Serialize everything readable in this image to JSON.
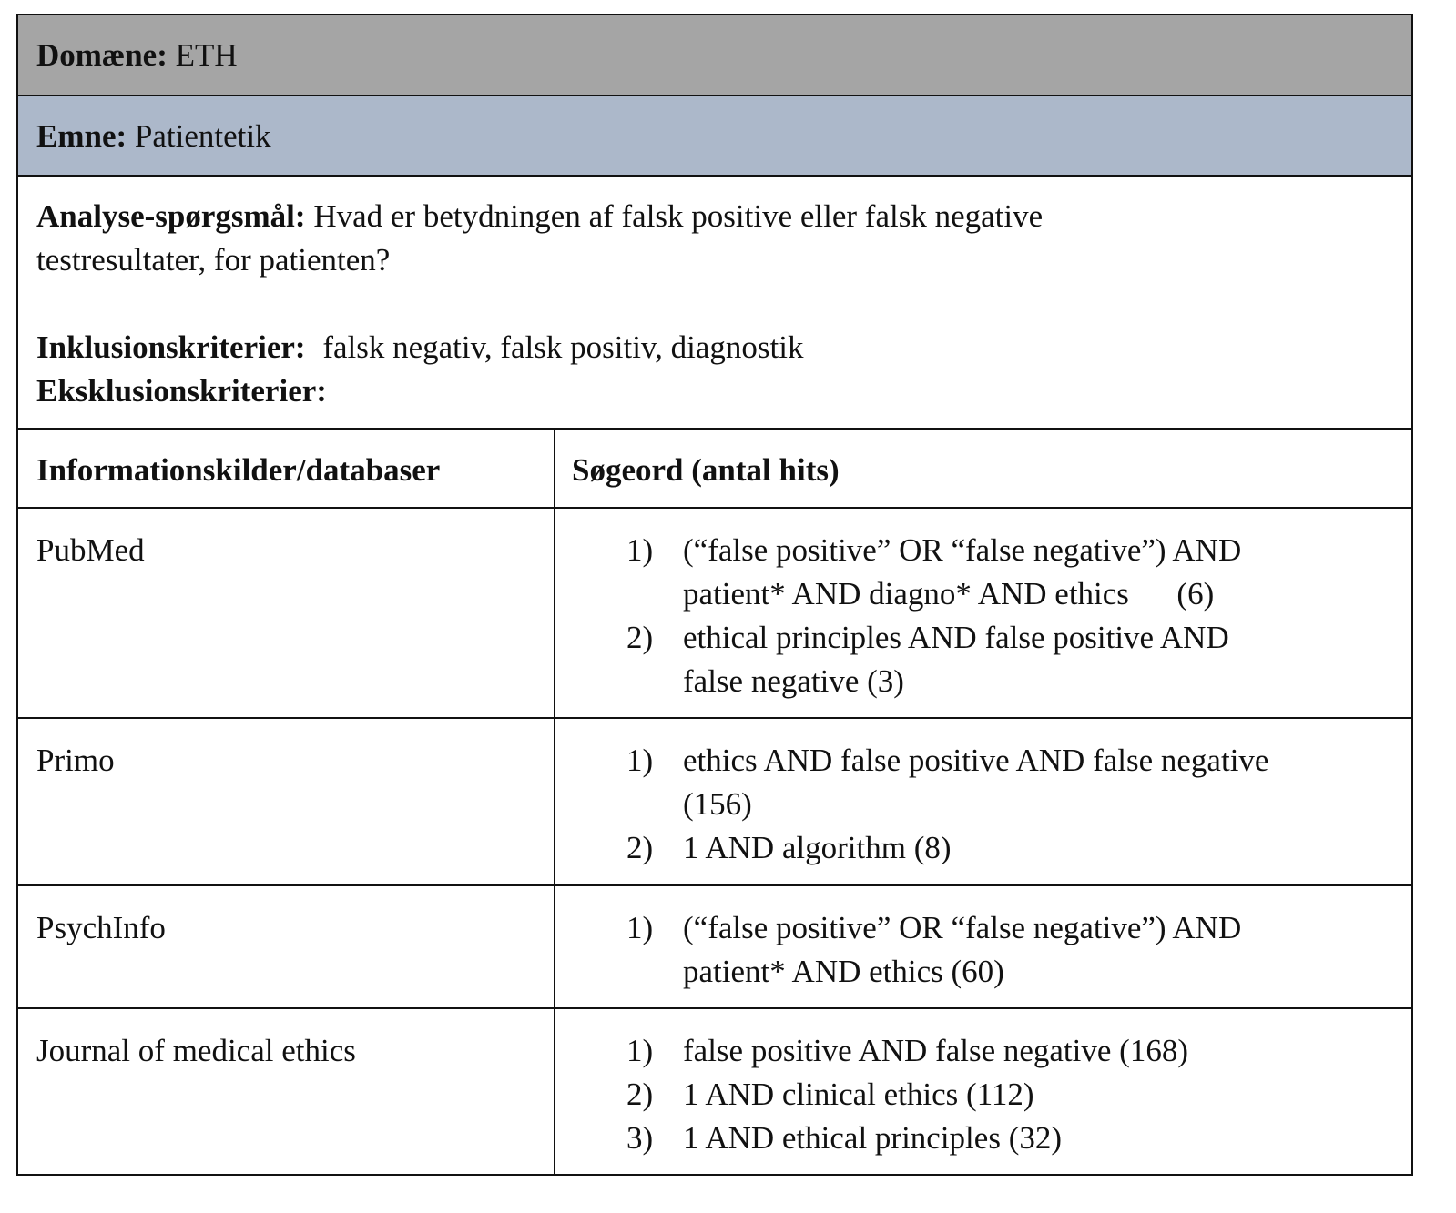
{
  "domain": {
    "label": "Domæne:",
    "value": "ETH"
  },
  "topic": {
    "label": "Emne:",
    "value": "Patientetik"
  },
  "question": {
    "label": "Analyse-spørgsmål:",
    "line1": "Hvad er betydningen af falsk positive eller falsk negative",
    "line2": "testresultater, for patienten?"
  },
  "inclusion": {
    "label": "Inklusionskriterier:",
    "value": "falsk negativ, falsk positiv, diagnostik"
  },
  "exclusion": {
    "label": "Eksklusionskriterier:",
    "value": ""
  },
  "table": {
    "headers": [
      "Informationskilder/databaser",
      "Søgeord (antal hits)"
    ],
    "rows": [
      {
        "source": "PubMed",
        "queries": [
          {
            "num": "1)",
            "line1": "(“false positive” OR “false negative”) AND",
            "line2": "patient* AND diagno* AND ethics      (6)"
          },
          {
            "num": "2)",
            "line1": "ethical principles AND false positive AND",
            "line2": "false negative (3)"
          }
        ]
      },
      {
        "source": "Primo",
        "queries": [
          {
            "num": "1)",
            "line1": "ethics AND false positive AND false negative",
            "line2": "(156)"
          },
          {
            "num": "2)",
            "line1": "1 AND algorithm (8)",
            "line2": ""
          }
        ]
      },
      {
        "source": "PsychInfo",
        "queries": [
          {
            "num": "1)",
            "line1": "(“false positive” OR “false negative”) AND",
            "line2": "patient* AND ethics (60)"
          }
        ]
      },
      {
        "source": "Journal of medical ethics",
        "queries": [
          {
            "num": "1)",
            "line1": "false positive AND false negative (168)",
            "line2": ""
          },
          {
            "num": "2)",
            "line1": "1 AND clinical ethics (112)",
            "line2": ""
          },
          {
            "num": "3)",
            "line1": "1 AND ethical principles (32)",
            "line2": ""
          }
        ]
      }
    ]
  },
  "colors": {
    "domain_bg": "#a5a5a5",
    "topic_bg": "#acb8ca",
    "border": "#111111"
  }
}
